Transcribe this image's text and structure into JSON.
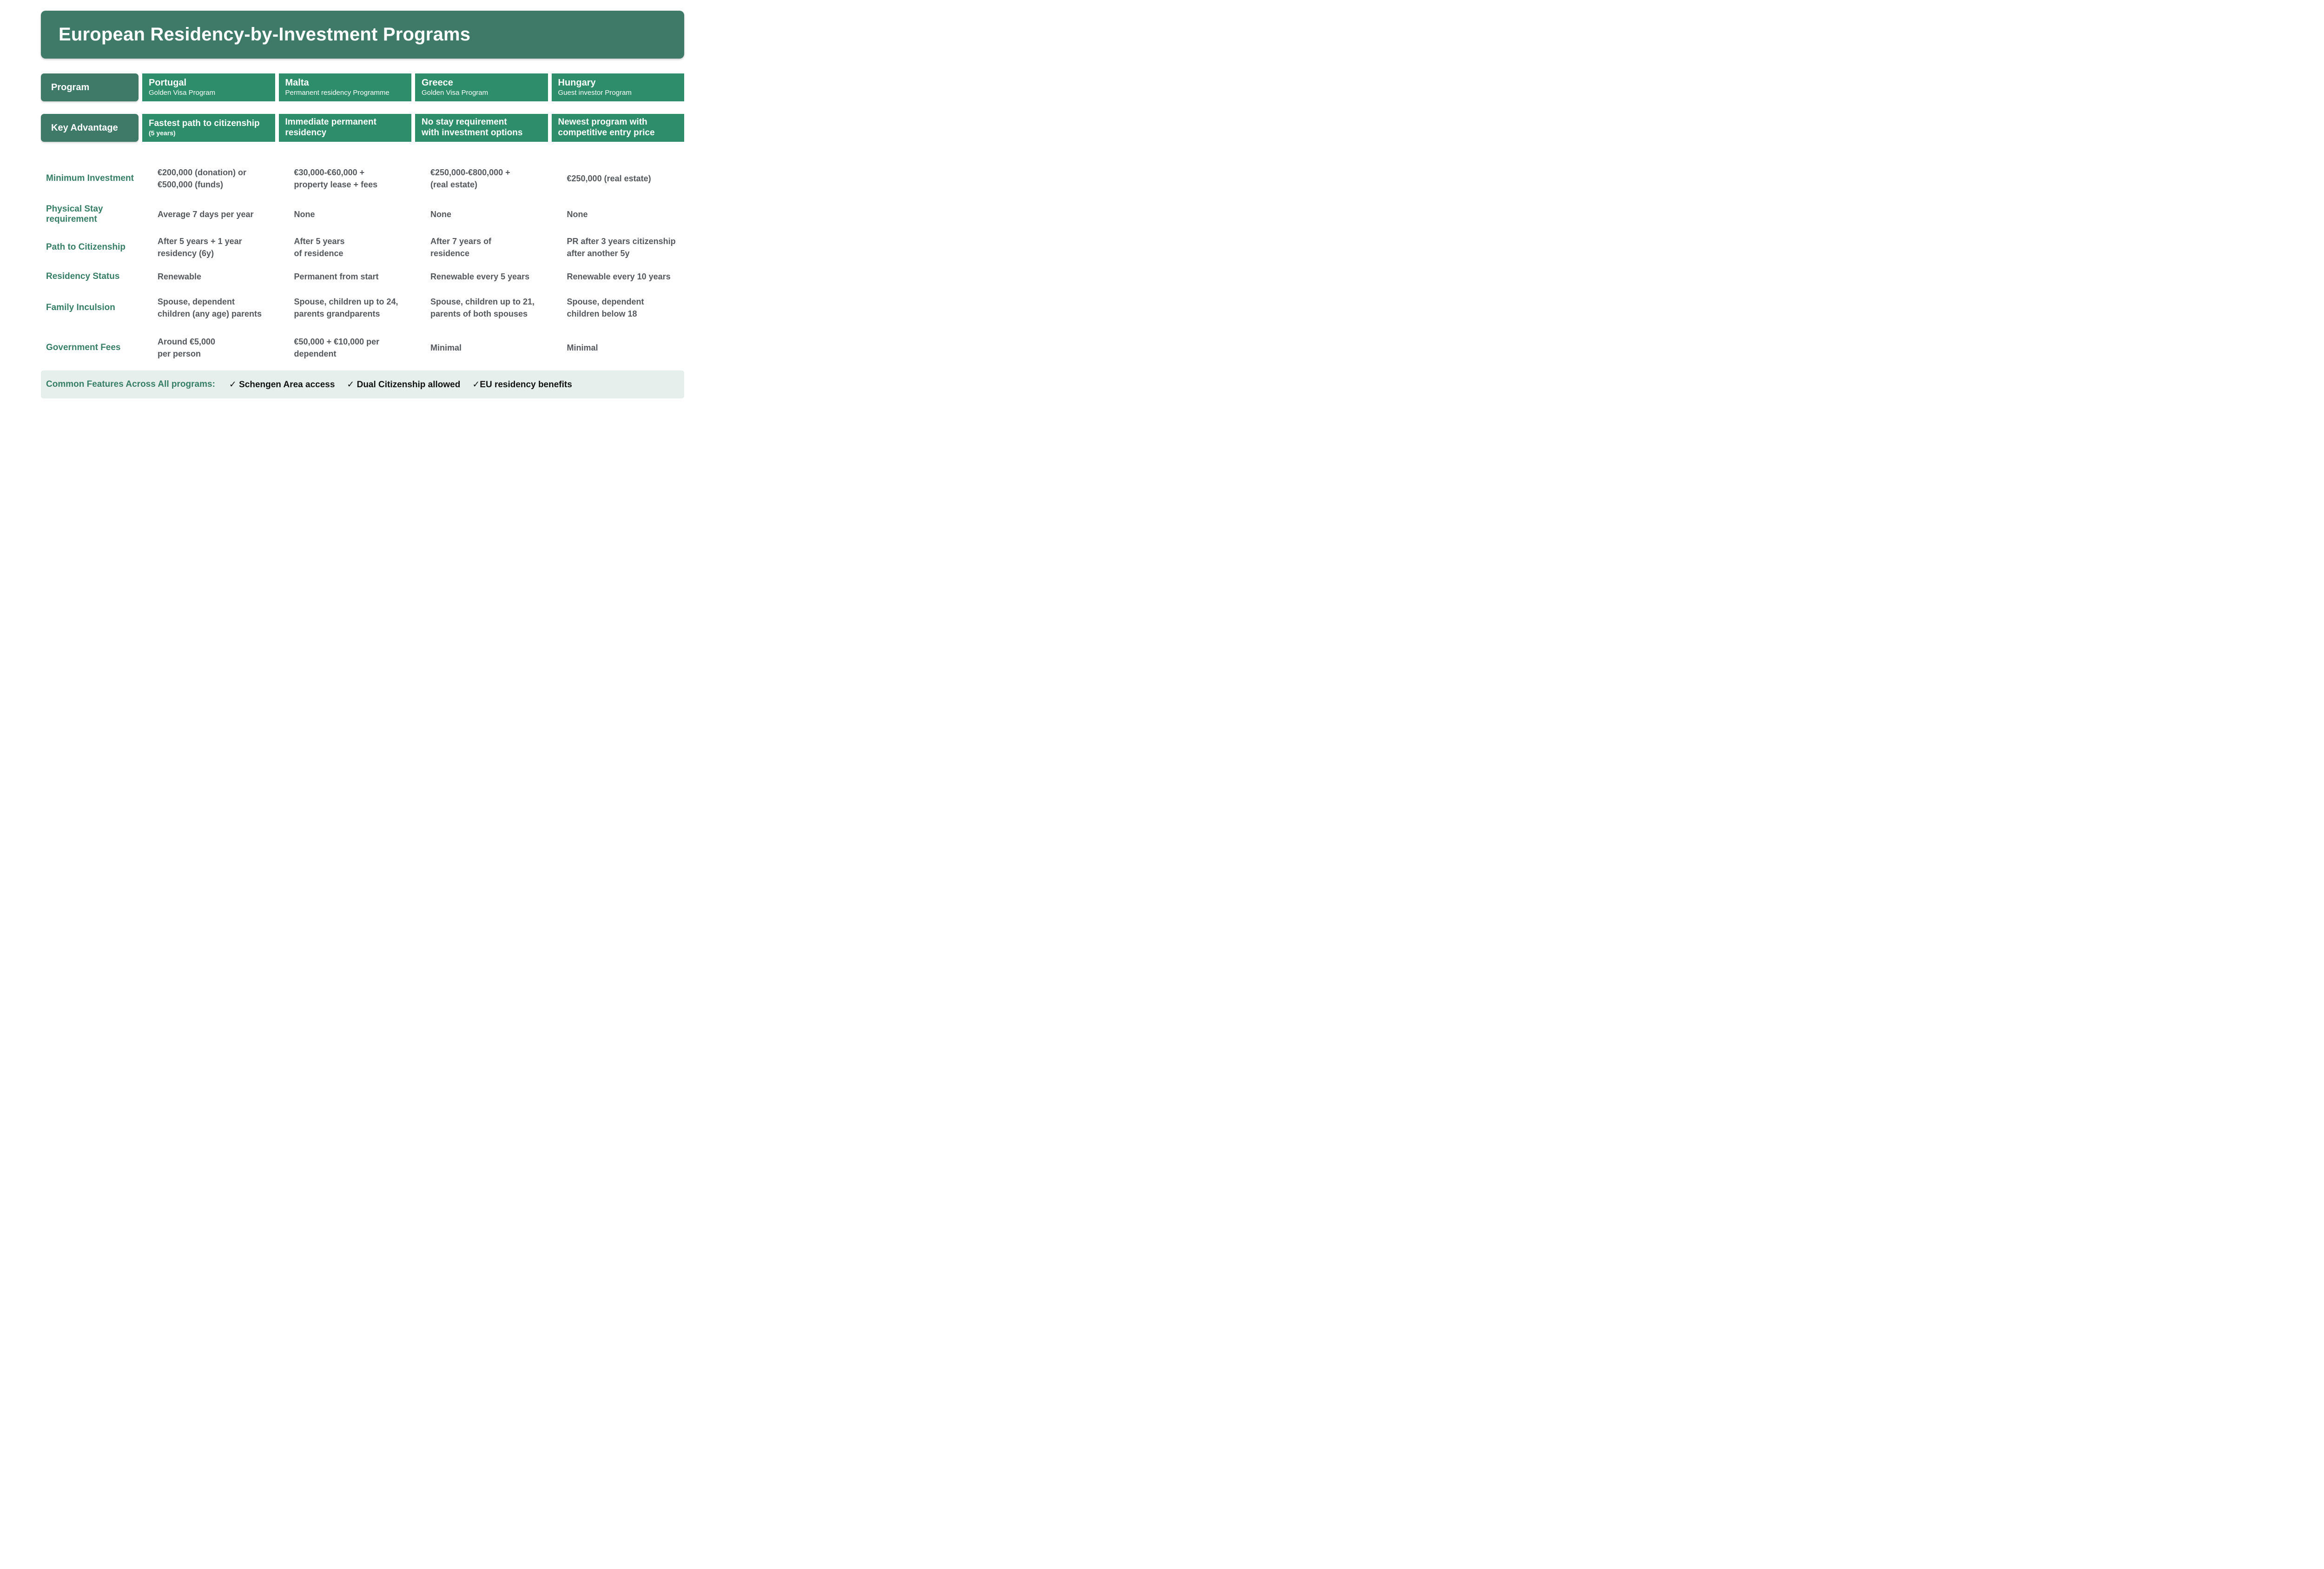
{
  "title": "European Residency-by-Investment Programs",
  "colors": {
    "banner_green": "#3e7a67",
    "cell_green": "#2e8d6b",
    "label_text_green": "#377e66",
    "value_text_gray": "#55595d",
    "footer_background": "#e6efec"
  },
  "table": {
    "program_label": "Program",
    "advantage_label": "Key Advantage",
    "columns": [
      {
        "country": "Portugal",
        "program": "Golden Visa Program",
        "advantage": "Fastest path to citizenship",
        "advantage_note": "(5 years)"
      },
      {
        "country": "Malta",
        "program": "Permanent residency Programme",
        "advantage": "Immediate permanent\nresidency"
      },
      {
        "country": "Greece",
        "program": "Golden Visa Program",
        "advantage": "No stay requirement\nwith investment options"
      },
      {
        "country": "Hungary",
        "program": "Guest investor Program",
        "advantage": "Newest program with\ncompetitive entry price"
      }
    ],
    "rows": [
      {
        "label": "Minimum Investment",
        "values": [
          "€200,000 (donation) or\n€500,000 (funds)",
          "€30,000-€60,000 +\nproperty lease + fees",
          "€250,000-€800,000 +\n(real estate)",
          "€250,000 (real estate)"
        ]
      },
      {
        "label": "Physical Stay\nrequirement",
        "values": [
          "Average 7 days per year",
          "None",
          "None",
          "None"
        ]
      },
      {
        "label": "Path to Citizenship",
        "values": [
          "After 5 years + 1 year\nresidency (6y)",
          "After 5 years\nof residence",
          "After 7 years of\nresidence",
          "PR after 3 years citizenship\nafter another 5y"
        ]
      },
      {
        "label": "Residency Status",
        "values": [
          "Renewable",
          "Permanent from start",
          "Renewable every 5 years",
          "Renewable every 10 years"
        ]
      },
      {
        "label": "Family Inculsion",
        "values": [
          "Spouse, dependent\nchildren (any age) parents",
          "Spouse, children up to 24,\nparents grandparents",
          "Spouse, children up to 21,\nparents of both spouses",
          "Spouse, dependent\nchildren below 18"
        ]
      },
      {
        "label": "Government Fees",
        "values": [
          "Around €5,000\nper person",
          "€50,000 + €10,000 per\ndependent",
          "Minimal",
          "Minimal"
        ]
      }
    ]
  },
  "footer": {
    "label": "Common Features Across All programs:",
    "items": [
      "✓ Schengen Area access",
      "✓ Dual Citizenship allowed",
      "✓EU residency benefits"
    ]
  },
  "chart_data": {
    "type": "table",
    "title": "European Residency-by-Investment Programs",
    "columns": [
      "Program",
      "Portugal — Golden Visa Program",
      "Malta — Permanent residency Programme",
      "Greece — Golden Visa Program",
      "Hungary — Guest investor Program"
    ],
    "rows": [
      [
        "Key Advantage",
        "Fastest path to citizenship (5 years)",
        "Immediate permanent residency",
        "No stay requirement with investment options",
        "Newest program with competitive entry price"
      ],
      [
        "Minimum Investment",
        "€200,000 (donation) or €500,000 (funds)",
        "€30,000-€60,000 + property lease + fees",
        "€250,000-€800,000 + (real estate)",
        "€250,000 (real estate)"
      ],
      [
        "Physical Stay requirement",
        "Average 7 days per year",
        "None",
        "None",
        "None"
      ],
      [
        "Path to Citizenship",
        "After 5 years + 1 year residency (6y)",
        "After 5 years of residence",
        "After 7 years of residence",
        "PR after 3 years citizenship after another 5y"
      ],
      [
        "Residency Status",
        "Renewable",
        "Permanent from start",
        "Renewable every 5 years",
        "Renewable every 10 years"
      ],
      [
        "Family Inculsion",
        "Spouse, dependent children (any age) parents",
        "Spouse, children up to 24, parents grandparents",
        "Spouse, children up to 21, parents of both spouses",
        "Spouse, dependent children below 18"
      ],
      [
        "Government Fees",
        "Around €5,000 per person",
        "€50,000 + €10,000 per dependent",
        "Minimal",
        "Minimal"
      ],
      [
        "Common Features Across All programs",
        "Schengen Area access",
        "Dual Citizenship allowed",
        "EU residency benefits",
        ""
      ]
    ]
  }
}
